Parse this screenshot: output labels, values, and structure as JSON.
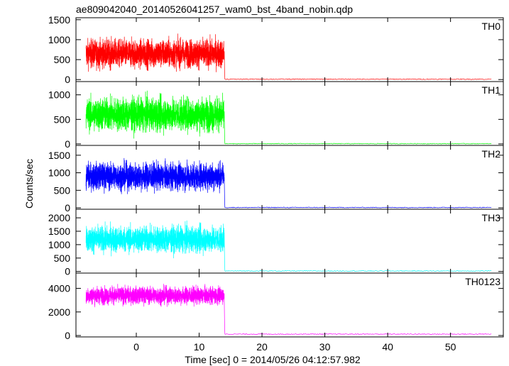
{
  "title": "ae809042040_20140526041257_wam0_bst_4band_nobin.qdp",
  "xlabel": "Time [sec] 0 = 2014/05/26 04:12:57.982",
  "ylabel": "Counts/sec",
  "chart_data": {
    "type": "line",
    "title": "ae809042040_20140526041257_wam0_bst_4band_nobin.qdp",
    "xlabel": "Time [sec] 0 = 2014/05/26 04:12:57.982",
    "ylabel": "Counts/sec",
    "xlim": [
      -9.6,
      58.4
    ],
    "x_ticks": [
      0,
      10,
      20,
      30,
      40,
      50
    ],
    "burst_end_time": 14.0,
    "data_end_time": 56.5,
    "grid": false,
    "panels": [
      {
        "name": "TH0",
        "color": "#ff0000",
        "ylim": [
          -50,
          1550
        ],
        "y_ticks": [
          0,
          500,
          1000,
          1500
        ],
        "burst_mean": 650,
        "burst_spread": 380,
        "burst_min": 100,
        "burst_max": 1500,
        "tail_level": 10
      },
      {
        "name": "TH1",
        "color": "#00ff00",
        "ylim": [
          -30,
          1270
        ],
        "y_ticks": [
          0,
          500,
          1000
        ],
        "burst_mean": 600,
        "burst_spread": 360,
        "burst_min": 100,
        "burst_max": 1250,
        "tail_level": 5
      },
      {
        "name": "TH2",
        "color": "#0000ff",
        "ylim": [
          -40,
          1780
        ],
        "y_ticks": [
          0,
          500,
          1000,
          1500
        ],
        "burst_mean": 900,
        "burst_spread": 420,
        "burst_min": 150,
        "burst_max": 1750,
        "tail_level": 10
      },
      {
        "name": "TH3",
        "color": "#00ffff",
        "ylim": [
          -60,
          2320
        ],
        "y_ticks": [
          0,
          500,
          1000,
          1500,
          2000
        ],
        "burst_mean": 1200,
        "burst_spread": 520,
        "burst_min": 300,
        "burst_max": 2250,
        "tail_level": 20
      },
      {
        "name": "TH0123",
        "color": "#ff00ff",
        "ylim": [
          -120,
          5300
        ],
        "y_ticks": [
          0,
          2000,
          4000
        ],
        "burst_mean": 3400,
        "burst_spread": 800,
        "burst_min": 1800,
        "burst_max": 5100,
        "tail_level": 120
      }
    ]
  }
}
